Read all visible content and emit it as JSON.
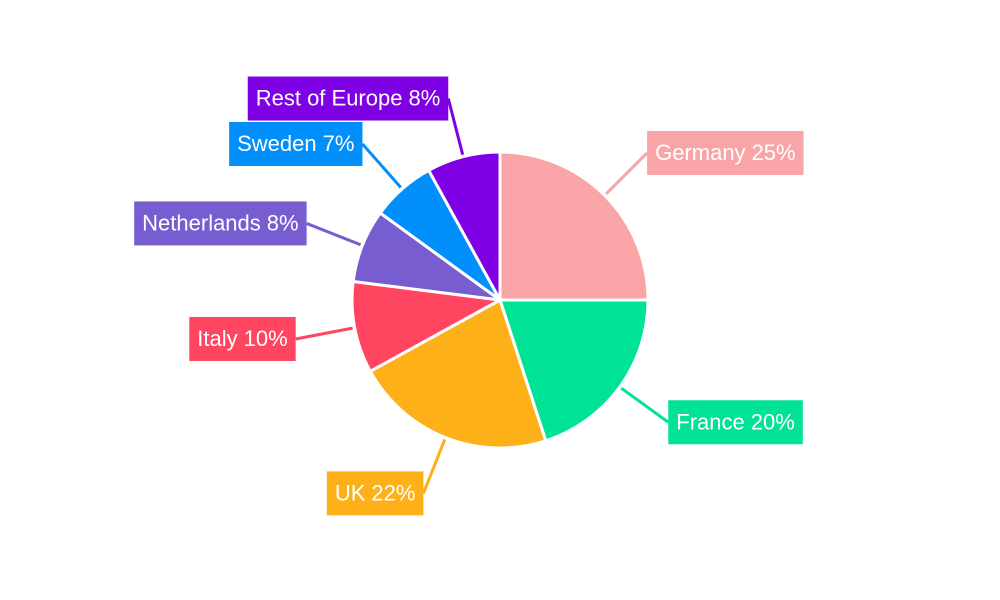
{
  "chart_data": {
    "type": "pie",
    "categories": [
      "Germany",
      "France",
      "UK",
      "Italy",
      "Netherlands",
      "Sweden",
      "Rest of Europe"
    ],
    "values": [
      25,
      20,
      22,
      10,
      8,
      7,
      8
    ],
    "value_labels": [
      "25%",
      "20%",
      "22%",
      "10%",
      "8%",
      "7%",
      "8%"
    ],
    "colors": [
      "#f9a5a7",
      "#00e396",
      "#feb019",
      "#ff4560",
      "#775dd0",
      "#008ffb",
      "#8000e6"
    ]
  }
}
